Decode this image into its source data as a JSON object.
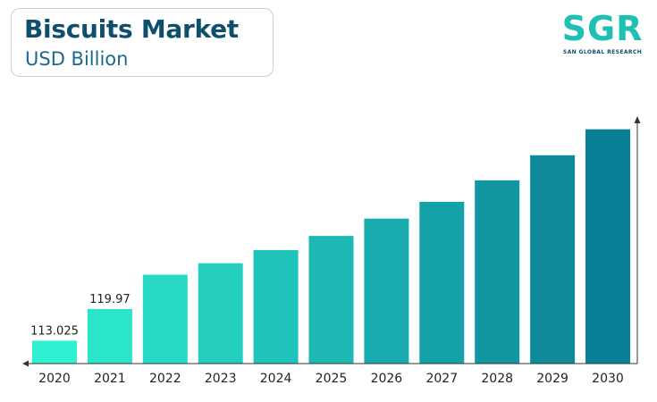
{
  "title_box": {
    "title": "Biscuits Market",
    "subtitle": "USD Billion"
  },
  "logo": {
    "text": "SGR",
    "tagline": "SAN GLOBAL RESEARCH"
  },
  "colors": {
    "title": "#0f4f6e",
    "bar_start": "#2ff0d1",
    "bar_end": "#0a7f96",
    "axis": "#333333"
  },
  "chart_data": {
    "type": "bar",
    "categories": [
      "2020",
      "2021",
      "2022",
      "2023",
      "2024",
      "2025",
      "2026",
      "2027",
      "2028",
      "2029",
      "2030"
    ],
    "values": [
      113.025,
      119.97,
      127.5,
      130.0,
      132.9,
      136.0,
      139.8,
      143.5,
      148.2,
      153.7,
      159.4
    ],
    "data_labels": [
      "113.025",
      "119.97",
      "",
      "",
      "",
      "",
      "",
      "",
      "",
      "",
      ""
    ],
    "title": "Biscuits Market",
    "ylabel": "USD Billion",
    "xlabel": "",
    "ylim": [
      108.0,
      161.5
    ],
    "grid": false,
    "legend": "none"
  }
}
